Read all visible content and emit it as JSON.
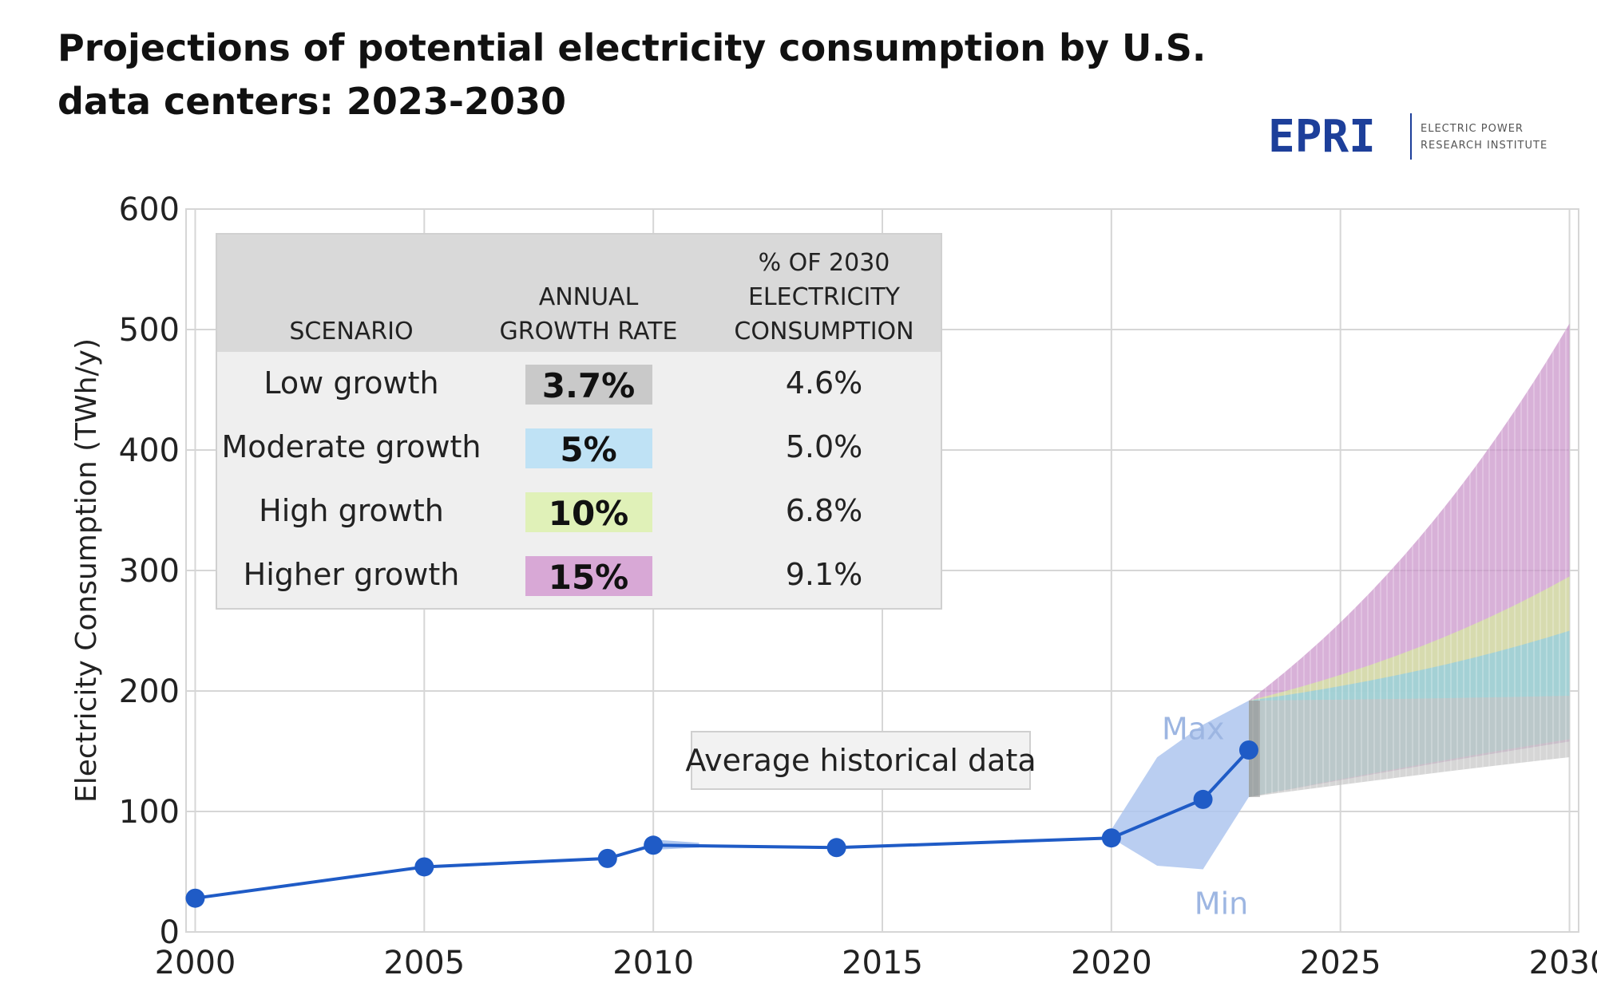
{
  "title_lines": [
    "Projections of potential electricity consumption by U.S.",
    "data centers: 2023-2030"
  ],
  "logo": {
    "mark": "EPRI",
    "line1": "ELECTRIC POWER",
    "line2": "RESEARCH INSTITUTE",
    "color": "#1d3f9a"
  },
  "chart_data": {
    "type": "line",
    "ylabel": "Electricity Consumption (TWh/y)",
    "xlabel": "",
    "xlim": [
      1999.8,
      2030.2
    ],
    "ylim": [
      0,
      600
    ],
    "x_ticks": [
      2000,
      2005,
      2010,
      2015,
      2020,
      2025,
      2030
    ],
    "y_ticks": [
      0,
      100,
      200,
      300,
      400,
      500,
      600
    ],
    "grid": true,
    "series": [
      {
        "name": "Average historical data",
        "color": "#1f5bc6",
        "x": [
          2000,
          2005,
          2009,
          2010,
          2014,
          2020,
          2022,
          2023
        ],
        "y": [
          28,
          54,
          61,
          72,
          70,
          78,
          110,
          151
        ]
      }
    ],
    "historical_range": {
      "color": "#aec6ef",
      "x": [
        2020,
        2021,
        2022,
        2023
      ],
      "max": [
        85,
        145,
        172,
        192
      ],
      "min": [
        78,
        55,
        52,
        112
      ],
      "max_label": "Max",
      "min_label": "Min"
    },
    "projection_start": {
      "x": 2023,
      "low": 112,
      "high": 192
    },
    "projection_bands": [
      {
        "name": "Higher growth",
        "color": "#c890c8",
        "x": 2030,
        "low": 158,
        "high": 505
      },
      {
        "name": "High growth",
        "color": "#d7ec9e",
        "x": 2030,
        "low": 160,
        "high": 295
      },
      {
        "name": "Moderate growth",
        "color": "#8ecde6",
        "x": 2030,
        "low": 160,
        "high": 250
      },
      {
        "name": "Low growth",
        "color": "#c4c4c4",
        "x": 2030,
        "low": 145,
        "high": 196
      }
    ],
    "annotation": "Average historical data"
  },
  "table": {
    "headers": [
      "SCENARIO",
      "ANNUAL GROWTH RATE",
      "% OF 2030 ELECTRICITY CONSUMPTION"
    ],
    "header_lines": [
      [
        "SCENARIO"
      ],
      [
        "ANNUAL",
        "GROWTH RATE"
      ],
      [
        "% OF 2030",
        "ELECTRICITY",
        "CONSUMPTION"
      ]
    ],
    "rows": [
      {
        "scenario": "Low growth",
        "rate": "3.7%",
        "share": "4.6%",
        "color": "#c9c9c9"
      },
      {
        "scenario": "Moderate growth",
        "rate": "5%",
        "share": "5.0%",
        "color": "#bfe2f5"
      },
      {
        "scenario": "High growth",
        "rate": "10%",
        "share": "6.8%",
        "color": "#e0f1b8"
      },
      {
        "scenario": "Higher growth",
        "rate": "15%",
        "share": "9.1%",
        "color": "#d8a8d6"
      }
    ]
  }
}
